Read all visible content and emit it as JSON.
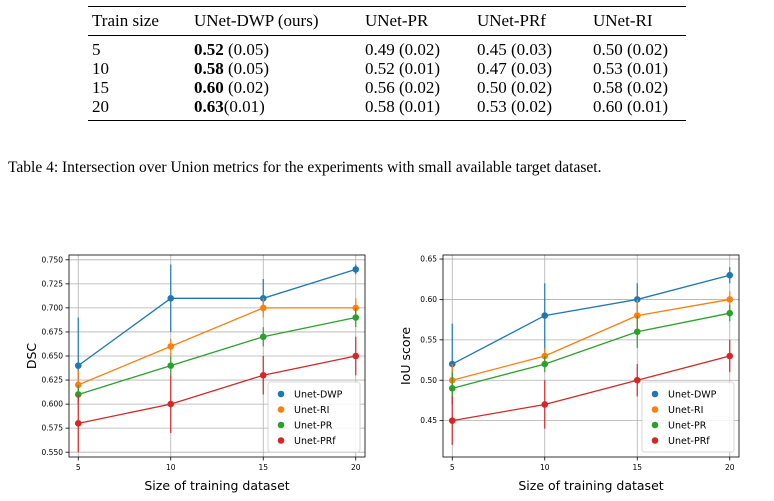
{
  "table": {
    "headers": [
      "Train size",
      "UNet-DWP (ours)",
      "UNet-PR",
      "UNet-PRf",
      "UNet-RI"
    ],
    "rows": [
      {
        "size": "5",
        "dwp_bold": "0.52",
        "dwp_rest": " (0.05)",
        "pr": "0.49 (0.02)",
        "prf": "0.45 (0.03)",
        "ri": "0.50 (0.02)"
      },
      {
        "size": "10",
        "dwp_bold": "0.58",
        "dwp_rest": " (0.05)",
        "pr": "0.52 (0.01)",
        "prf": "0.47 (0.03)",
        "ri": "0.53 (0.01)"
      },
      {
        "size": "15",
        "dwp_bold": "0.60",
        "dwp_rest": " (0.02)",
        "pr": "0.56 (0.02)",
        "prf": "0.50 (0.02)",
        "ri": "0.58 (0.02)"
      },
      {
        "size": "20",
        "dwp_bold": "0.63",
        "dwp_rest": "(0.01)",
        "pr": "0.58 (0.01)",
        "prf": "0.53 (0.02)",
        "ri": "0.60 (0.01)"
      }
    ]
  },
  "caption": "Table 4: Intersection over Union metrics for the experiments with small available target dataset.",
  "chart_data": [
    {
      "type": "line",
      "title": "",
      "xlabel": "Size of training dataset",
      "ylabel": "DSC",
      "x": [
        5,
        10,
        15,
        20
      ],
      "xlim": [
        4.5,
        20.5
      ],
      "ylim": [
        0.545,
        0.755
      ],
      "xticks": [
        5,
        10,
        15,
        20
      ],
      "yticks": [
        0.55,
        0.575,
        0.6,
        0.625,
        0.65,
        0.675,
        0.7,
        0.725,
        0.75
      ],
      "yticklabels": [
        "0.550",
        "0.575",
        "0.600",
        "0.625",
        "0.650",
        "0.675",
        "0.700",
        "0.725",
        "0.750"
      ],
      "grid": true,
      "legend": "bottom-right",
      "series": [
        {
          "name": "Unet-DWP",
          "color": "#1f77b4",
          "values": [
            0.64,
            0.71,
            0.71,
            0.74
          ],
          "err_low": [
            0.605,
            0.675,
            0.695,
            0.735
          ],
          "err_high": [
            0.69,
            0.745,
            0.73,
            0.745
          ]
        },
        {
          "name": "Unet-RI",
          "color": "#ff7f0e",
          "values": [
            0.62,
            0.66,
            0.7,
            0.7
          ],
          "err_low": [
            0.605,
            0.65,
            0.69,
            0.69
          ],
          "err_high": [
            0.635,
            0.668,
            0.71,
            0.71
          ]
        },
        {
          "name": "Unet-PR",
          "color": "#2ca02c",
          "values": [
            0.61,
            0.64,
            0.67,
            0.69
          ],
          "err_low": [
            0.6,
            0.63,
            0.66,
            0.68
          ],
          "err_high": [
            0.62,
            0.65,
            0.68,
            0.7
          ]
        },
        {
          "name": "Unet-PRf",
          "color": "#d62728",
          "values": [
            0.58,
            0.6,
            0.63,
            0.65
          ],
          "err_low": [
            0.55,
            0.57,
            0.61,
            0.63
          ],
          "err_high": [
            0.61,
            0.63,
            0.65,
            0.67
          ]
        }
      ]
    },
    {
      "type": "line",
      "title": "",
      "xlabel": "Size of training dataset",
      "ylabel": "IoU score",
      "x": [
        5,
        10,
        15,
        20
      ],
      "xlim": [
        4.5,
        20.5
      ],
      "ylim": [
        0.405,
        0.655
      ],
      "xticks": [
        5,
        10,
        15,
        20
      ],
      "yticks": [
        0.45,
        0.5,
        0.55,
        0.6,
        0.65
      ],
      "yticklabels": [
        "0.45",
        "0.50",
        "0.55",
        "0.60",
        "0.65"
      ],
      "grid": true,
      "legend": "bottom-right",
      "series": [
        {
          "name": "Unet-DWP",
          "color": "#1f77b4",
          "values": [
            0.52,
            0.58,
            0.6,
            0.63
          ],
          "err_low": [
            0.47,
            0.53,
            0.58,
            0.62
          ],
          "err_high": [
            0.57,
            0.62,
            0.62,
            0.64
          ]
        },
        {
          "name": "Unet-RI",
          "color": "#ff7f0e",
          "values": [
            0.5,
            0.53,
            0.58,
            0.6
          ],
          "err_low": [
            0.48,
            0.52,
            0.56,
            0.59
          ],
          "err_high": [
            0.52,
            0.54,
            0.6,
            0.61
          ]
        },
        {
          "name": "Unet-PR",
          "color": "#2ca02c",
          "values": [
            0.49,
            0.52,
            0.56,
            0.583
          ],
          "err_low": [
            0.47,
            0.51,
            0.54,
            0.573
          ],
          "err_high": [
            0.51,
            0.53,
            0.58,
            0.593
          ]
        },
        {
          "name": "Unet-PRf",
          "color": "#d62728",
          "values": [
            0.45,
            0.47,
            0.5,
            0.53
          ],
          "err_low": [
            0.42,
            0.44,
            0.48,
            0.51
          ],
          "err_high": [
            0.48,
            0.5,
            0.52,
            0.55
          ]
        }
      ]
    }
  ]
}
